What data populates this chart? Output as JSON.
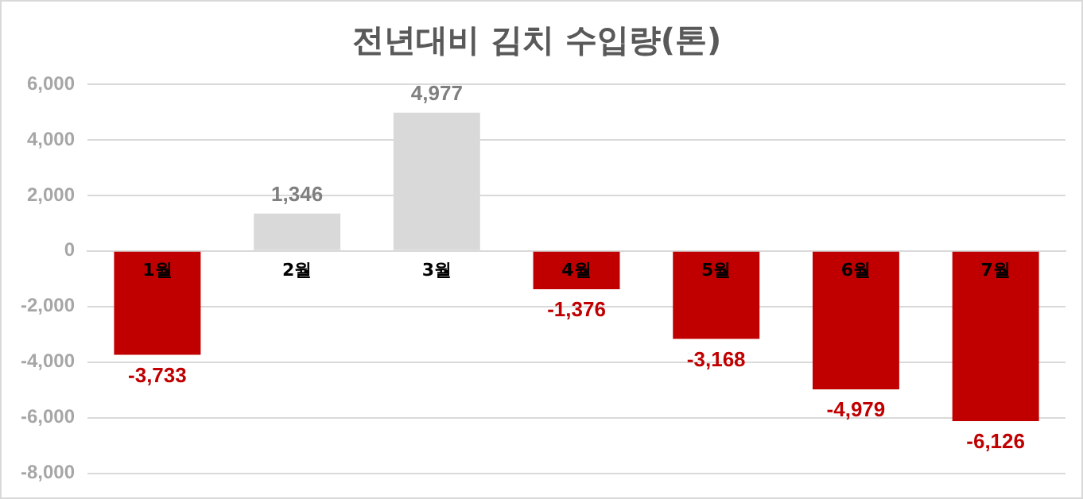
{
  "chart_data": {
    "type": "bar",
    "title": "전년대비 김치 수입량(톤)",
    "categories": [
      "1월",
      "2월",
      "3월",
      "4월",
      "5월",
      "6월",
      "7월"
    ],
    "values": [
      -3733,
      1346,
      4977,
      -1376,
      -3168,
      -4979,
      -6126
    ],
    "colors": [
      "#c00000",
      "#d9d9d9",
      "#d9d9d9",
      "#c00000",
      "#c00000",
      "#c00000",
      "#c00000"
    ],
    "value_labels": [
      "-3,733",
      "1,346",
      "4,977",
      "-1,376",
      "-3,168",
      "-4,979",
      "-6,126"
    ],
    "ylim": [
      -8000,
      6000
    ],
    "yticks": [
      {
        "value": -8000,
        "label": "-8,000"
      },
      {
        "value": -6000,
        "label": "-6,000"
      },
      {
        "value": -4000,
        "label": "-4,000"
      },
      {
        "value": -2000,
        "label": "-2,000"
      },
      0,
      {
        "value": 2000,
        "label": "2,000"
      },
      {
        "value": 4000,
        "label": "4,000"
      },
      {
        "value": 6000,
        "label": "6,000"
      }
    ],
    "grid": "y",
    "legend": false
  }
}
